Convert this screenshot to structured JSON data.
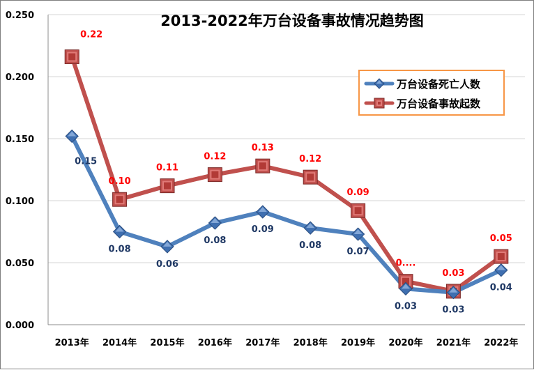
{
  "chart_data": {
    "type": "line",
    "title": "2013-2022年万台设备事故情况趋势图",
    "categories": [
      "2013年",
      "2014年",
      "2015年",
      "2016年",
      "2017年",
      "2018年",
      "2019年",
      "2020年",
      "2021年",
      "2022年"
    ],
    "ylim": [
      0,
      0.25
    ],
    "yticks": [
      "0.000",
      "0.050",
      "0.100",
      "0.150",
      "0.200",
      "0.250"
    ],
    "grid": true,
    "legend_position": "top-right",
    "series": [
      {
        "name": "万台设备死亡人数",
        "color": "#4f81bd",
        "marker": "diamond",
        "values": [
          0.152,
          0.075,
          0.063,
          0.082,
          0.091,
          0.078,
          0.073,
          0.029,
          0.026,
          0.044
        ],
        "labels": [
          "0.15",
          "0.08",
          "0.06",
          "0.08",
          "0.09",
          "0.08",
          "0.07",
          "0.03",
          "0.03",
          "0.04"
        ]
      },
      {
        "name": "万台设备事故起数",
        "color": "#c0504d",
        "marker": "square",
        "values": [
          0.216,
          0.101,
          0.112,
          0.121,
          0.128,
          0.119,
          0.092,
          0.035,
          0.027,
          0.055
        ],
        "labels": [
          "0.22",
          "0.10",
          "0.11",
          "0.12",
          "0.13",
          "0.12",
          "0.09",
          "0....",
          "0.03",
          "0.05"
        ]
      }
    ]
  }
}
